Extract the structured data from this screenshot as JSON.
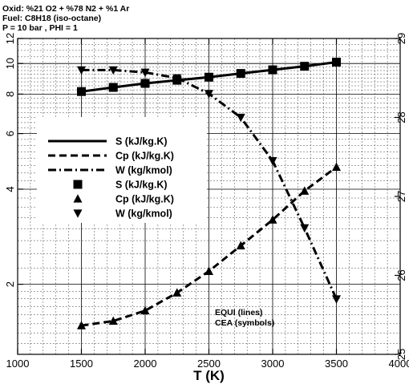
{
  "chart_data": {
    "type": "line",
    "header": [
      "Oxid: %21 O2 + %78 N2 + %1 Ar",
      "Fuel: C8H18 (iso-octane)",
      "P = 10 bar , PHI = 1"
    ],
    "xlabel": "T (K)",
    "xlim": [
      1000,
      4000
    ],
    "x_ticks": [
      "1000",
      "1500",
      "2000",
      "2500",
      "3000",
      "3500",
      "4000"
    ],
    "left_axis": {
      "scale": "log",
      "ylim": [
        1.2,
        12
      ],
      "ticks": [
        "2",
        "4",
        "6",
        "8",
        "10",
        "12"
      ]
    },
    "right_axis": {
      "scale": "linear",
      "ylim": [
        25,
        29
      ],
      "ticks": [
        "25",
        "26",
        "27",
        "28",
        "29"
      ]
    },
    "grid": true,
    "legend_position": "left",
    "x": [
      1500,
      1750,
      2000,
      2250,
      2500,
      2750,
      3000,
      3250,
      3500
    ],
    "series": [
      {
        "name": "S (kJ/kg.K)",
        "axis": "left",
        "style": "solid",
        "values": [
          8.15,
          8.4,
          8.65,
          8.85,
          9.05,
          9.3,
          9.55,
          9.8,
          10.1
        ]
      },
      {
        "name": "Cp (kJ/kg.K)",
        "axis": "left",
        "style": "dashed",
        "values": [
          1.48,
          1.53,
          1.65,
          1.88,
          2.2,
          2.65,
          3.2,
          3.95,
          4.7
        ]
      },
      {
        "name": "W (kg/kmol)",
        "axis": "right",
        "style": "dashdot",
        "values": [
          28.6,
          28.6,
          28.57,
          28.5,
          28.3,
          28.0,
          27.45,
          26.6,
          25.7
        ]
      }
    ],
    "symbol_series": [
      {
        "name": "S (kJ/kg.K)",
        "marker": "square",
        "of": 0
      },
      {
        "name": "Cp (kJ/kg.K)",
        "marker": "triangle-up",
        "of": 1
      },
      {
        "name": "W (kg/kmol)",
        "marker": "triangle-down",
        "of": 2
      }
    ],
    "annotation": [
      "EQUI (lines)",
      "CEA (symbols)"
    ]
  }
}
